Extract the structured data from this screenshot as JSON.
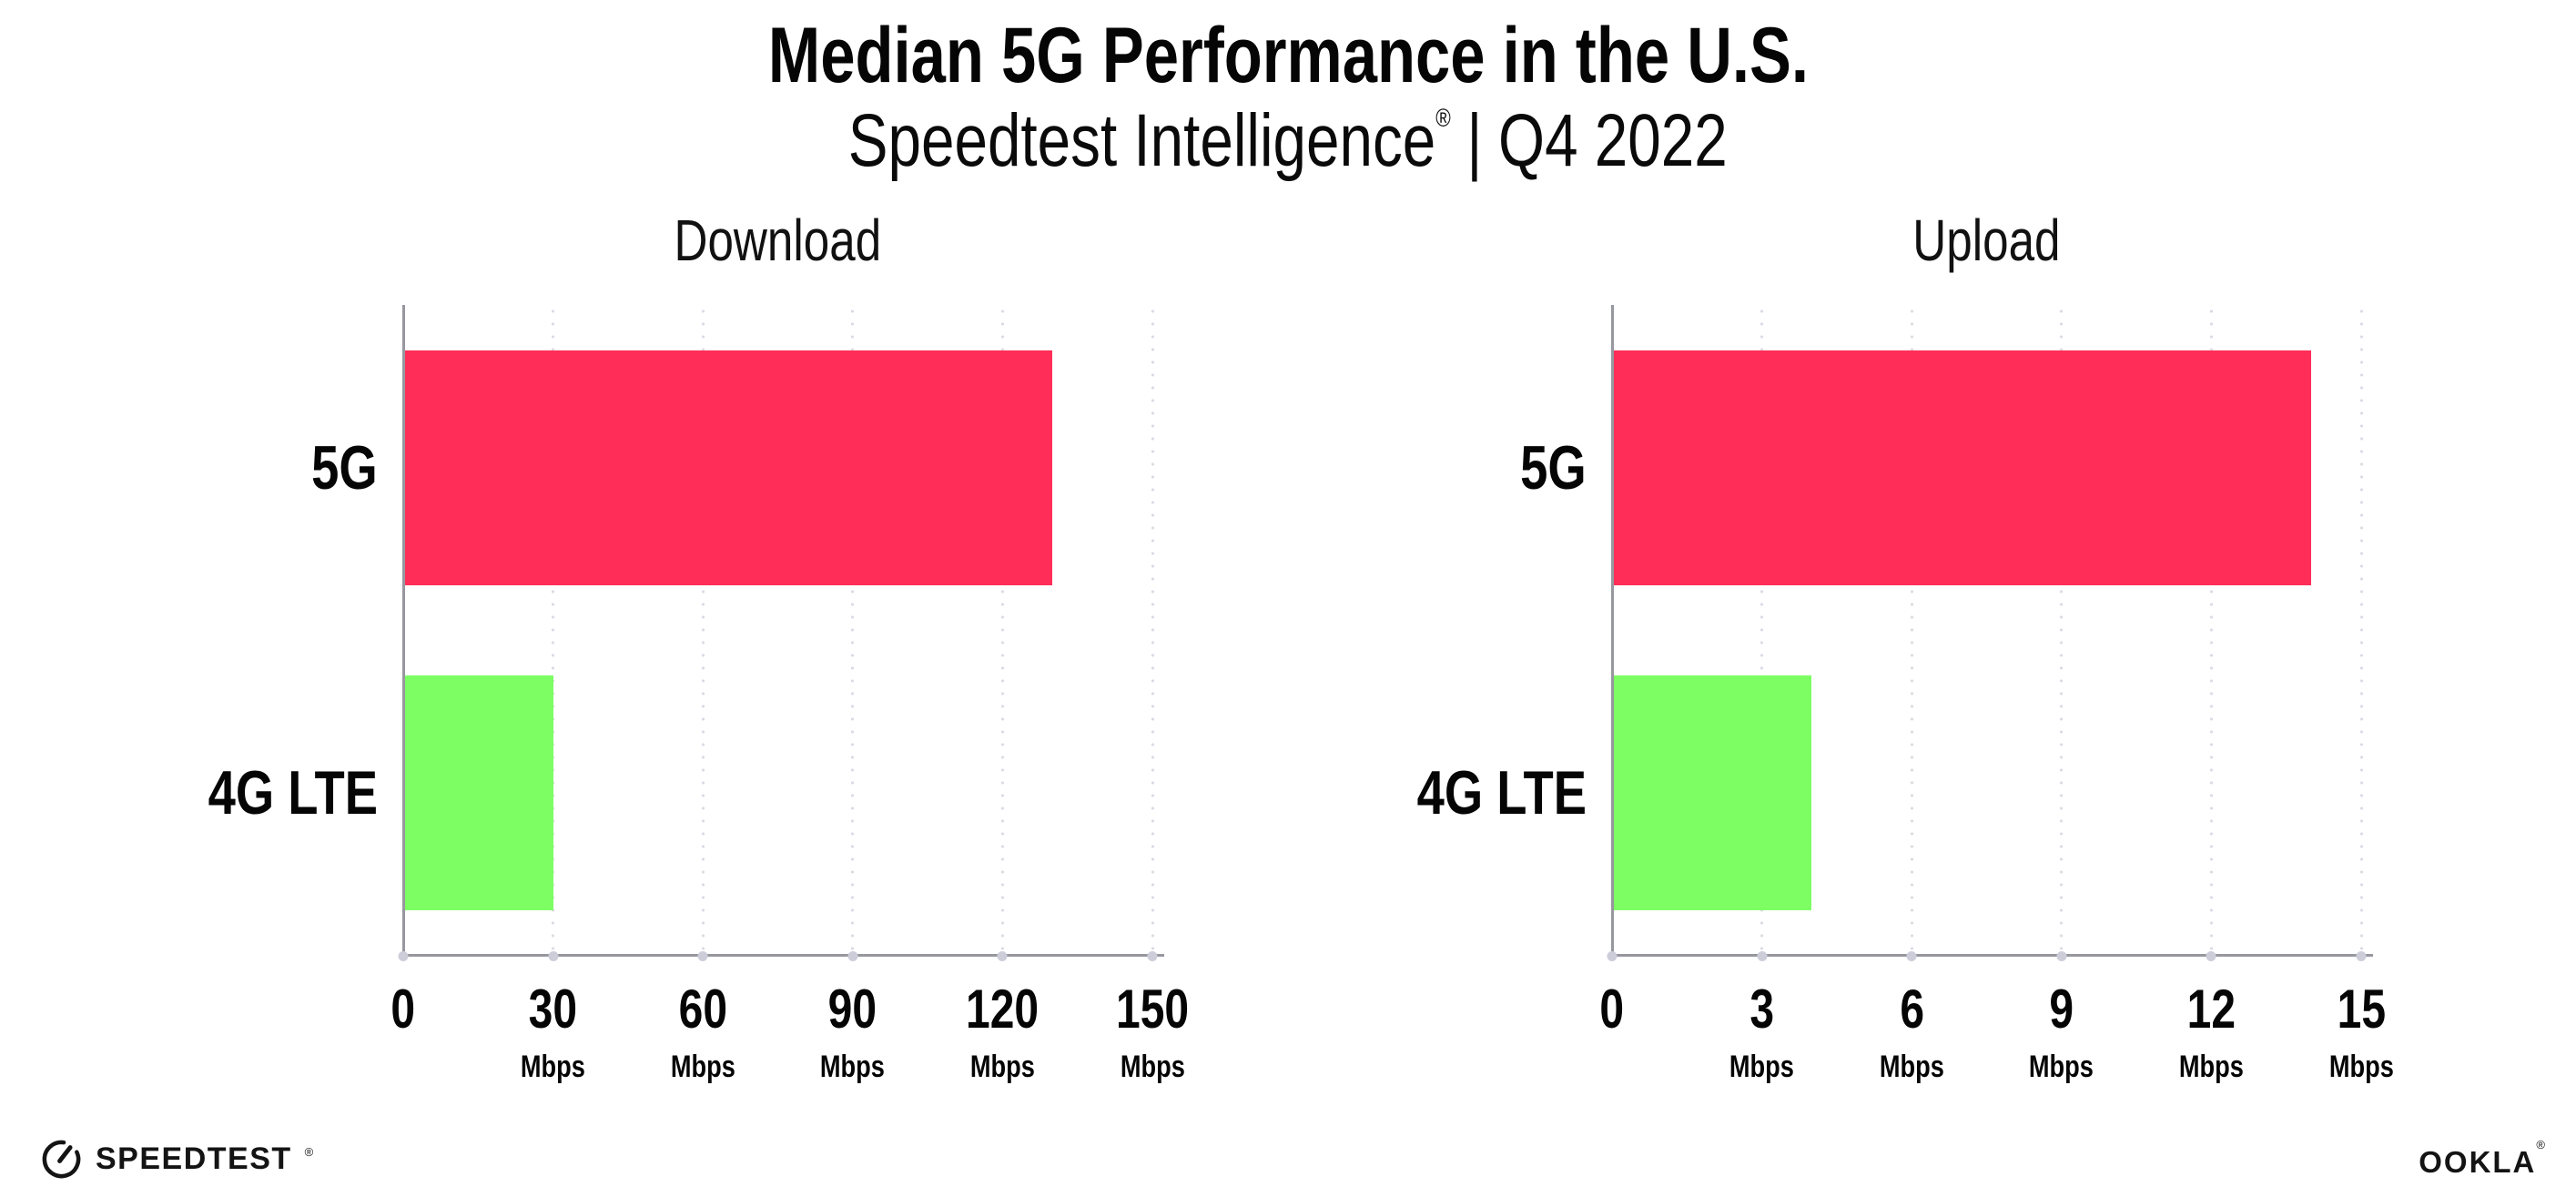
{
  "header": {
    "title": "Median 5G Performance in the U.S.",
    "subtitle": {
      "brand": "Speedtest Intelligence",
      "registered_mark": "®",
      "divider": "|",
      "period": "Q4 2022"
    }
  },
  "chart_data": [
    {
      "type": "bar",
      "orientation": "horizontal",
      "title": "Download",
      "categories": [
        "5G",
        "4G LTE"
      ],
      "values": [
        130,
        30
      ],
      "unit": "Mbps",
      "bar_colors": [
        "#FF2D58",
        "#7DFF64"
      ],
      "xlim": [
        0,
        150
      ],
      "xticks": [
        0,
        30,
        60,
        90,
        120,
        150
      ],
      "grid": "dotted-vertical",
      "legend": "none"
    },
    {
      "type": "bar",
      "orientation": "horizontal",
      "title": "Upload",
      "categories": [
        "5G",
        "4G LTE"
      ],
      "values": [
        14,
        4
      ],
      "unit": "Mbps",
      "bar_colors": [
        "#FF2D58",
        "#7DFF64"
      ],
      "xlim": [
        0,
        15
      ],
      "xticks": [
        0,
        3,
        6,
        9,
        12,
        15
      ],
      "grid": "dotted-vertical",
      "legend": "none"
    }
  ],
  "footer": {
    "speedtest_label": "SPEEDTEST",
    "speedtest_mark": "®",
    "ookla_label": "OOKLA",
    "ookla_mark": "®"
  },
  "icons": {
    "speedtest": "gauge-icon"
  },
  "colors": {
    "bar_5g": "#FF2D58",
    "bar_4g_lte": "#7DFF64",
    "axis": "#97979F",
    "gridline_dot": "#DBDBE5",
    "tick_dot": "#CDCDDA",
    "text": "#000000",
    "background": "#FFFFFF"
  }
}
